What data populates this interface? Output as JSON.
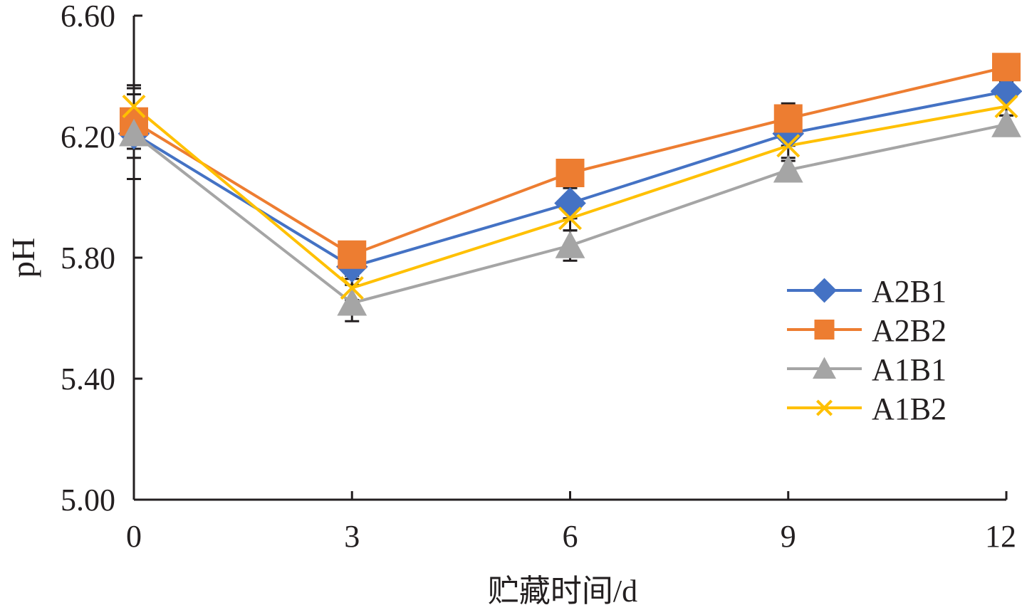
{
  "chart_data": {
    "type": "line",
    "title": "",
    "xlabel": "贮藏时间/d",
    "ylabel": "pH",
    "x": [
      0,
      3,
      6,
      9,
      12
    ],
    "x_ticks": [
      "0",
      "3",
      "6",
      "9",
      "12"
    ],
    "y_ticks": [
      "5.00",
      "5.40",
      "5.80",
      "6.20",
      "6.60"
    ],
    "ylim": [
      5.0,
      6.6
    ],
    "xlim": [
      0,
      12
    ],
    "grid": false,
    "legend_position": "right",
    "series": [
      {
        "name": "A2B1",
        "color": "#4472c4",
        "marker": "diamond",
        "values": [
          6.21,
          5.77,
          5.98,
          6.21,
          6.35
        ],
        "error": [
          0.15,
          0.04,
          0.05,
          0.04,
          0.03
        ]
      },
      {
        "name": "A2B2",
        "color": "#ed7d31",
        "marker": "square",
        "values": [
          6.25,
          5.81,
          6.08,
          6.26,
          6.43
        ],
        "error": [
          0.12,
          0.03,
          0.03,
          0.05,
          0.03
        ]
      },
      {
        "name": "A1B1",
        "color": "#a5a5a5",
        "marker": "triangle",
        "values": [
          6.21,
          5.65,
          5.84,
          6.09,
          6.24
        ],
        "error": [
          0.05,
          0.06,
          0.05,
          0.03,
          0.03
        ]
      },
      {
        "name": "A1B2",
        "color": "#ffc000",
        "marker": "cross",
        "values": [
          6.3,
          5.7,
          5.93,
          6.17,
          6.3
        ],
        "error": [
          0.04,
          0.04,
          0.04,
          0.04,
          0.03
        ]
      }
    ]
  }
}
